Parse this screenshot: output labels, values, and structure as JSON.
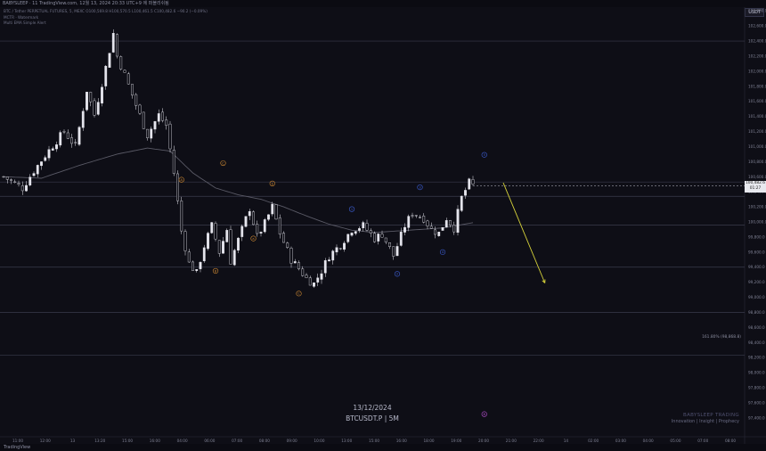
{
  "window": {
    "title": "BABYSLEEP · 11 TradingView.com, 12월 13, 2024 20:33 UTC+9 에 퍼블리쉬됨"
  },
  "legend": {
    "symbol_line": "BTC / Tether PERPETUAL FUTURES, 5, MEXC  O100,569.8 H100,570.5 L100,461.5 C100,482.6 −90.2 (−0.09%)",
    "line2": "MCTR · Watermark",
    "line3": "Multi EMA Simple Alert"
  },
  "currency_badge": "USDT",
  "current_price": {
    "label": "100,482.6",
    "countdown": "01:27"
  },
  "watermark": {
    "date": "13/12/2024",
    "ticker": "BTCUSDT.P | 5M"
  },
  "brand": {
    "name": "BABYSLEEP TRADING",
    "tagline": "Innovation | Insight | Prophecy"
  },
  "footer": {
    "label": "TradingView"
  },
  "colors": {
    "background": "#0e0e16",
    "candle": "#e6e6ee",
    "orange_wave": "#d08a33",
    "blue_wave": "#3d5fd6",
    "purple_wave": "#b64fd0",
    "projection": "#d6d23a",
    "ema": "#5a5a66"
  },
  "chart_data": {
    "type": "candlestick",
    "ylim": [
      97150,
      102850
    ],
    "y_ticks": [
      "102,800.0",
      "102,600.0",
      "102,400.0",
      "102,200.0",
      "102,000.0",
      "101,800.0",
      "101,600.0",
      "101,400.0",
      "101,200.0",
      "101,000.0",
      "100,800.0",
      "100,600.0",
      "100,400.0",
      "100,200.0",
      "100,000.0",
      "99,800.0",
      "99,600.0",
      "99,400.0",
      "99,200.0",
      "99,000.0",
      "98,800.0",
      "98,600.0",
      "98,400.0",
      "98,200.0",
      "98,000.0",
      "97,800.0",
      "97,600.0",
      "97,400.0"
    ],
    "x_ticks": [
      "11:00",
      "12:00",
      "13",
      "13:20",
      "15:00",
      "16:00",
      "04:00",
      "06:00",
      "07:00",
      "08:00",
      "09:00",
      "10:00",
      "13:00",
      "15:00",
      "16:00",
      "18:00",
      "19:00",
      "20:00",
      "21:00",
      "22:00",
      "14",
      "02:00",
      "03:00",
      "04:00",
      "05:00",
      "07:00",
      "08:00"
    ],
    "fib_annotation": "161.80% (98,868.8)",
    "horizontal_levels": [
      102400,
      100530,
      100340,
      99960,
      99400,
      98800,
      98230
    ],
    "close_path": [
      [
        0,
        100600
      ],
      [
        5,
        100450
      ],
      [
        8,
        100680
      ],
      [
        12,
        100950
      ],
      [
        16,
        101200
      ],
      [
        19,
        101000
      ],
      [
        22,
        101750
      ],
      [
        24,
        101420
      ],
      [
        27,
        102050
      ],
      [
        29,
        102500
      ],
      [
        30,
        102200
      ],
      [
        32,
        101950
      ],
      [
        35,
        101550
      ],
      [
        38,
        101150
      ],
      [
        41,
        101420
      ],
      [
        43,
        101280
      ],
      [
        45,
        100650
      ],
      [
        47,
        99880
      ],
      [
        49,
        99450
      ],
      [
        51,
        99320
      ],
      [
        53,
        99680
      ],
      [
        55,
        99950
      ],
      [
        57,
        99600
      ],
      [
        59,
        99900
      ],
      [
        60,
        99480
      ],
      [
        63,
        99900
      ],
      [
        65,
        100180
      ],
      [
        67,
        99800
      ],
      [
        69,
        99980
      ],
      [
        71,
        100200
      ],
      [
        73,
        99850
      ],
      [
        76,
        99500
      ],
      [
        78,
        99380
      ],
      [
        80,
        99250
      ],
      [
        82,
        99180
      ],
      [
        84,
        99350
      ],
      [
        86,
        99550
      ],
      [
        89,
        99700
      ],
      [
        92,
        99900
      ],
      [
        95,
        99950
      ],
      [
        98,
        99780
      ],
      [
        100,
        99840
      ],
      [
        103,
        99550
      ],
      [
        106,
        99950
      ],
      [
        108,
        100120
      ],
      [
        111,
        100050
      ],
      [
        113,
        99900
      ],
      [
        115,
        99850
      ],
      [
        117,
        100050
      ],
      [
        119,
        99920
      ],
      [
        121,
        100320
      ],
      [
        123,
        100520
      ],
      [
        124,
        100480
      ]
    ],
    "ema_path": [
      [
        0,
        100600
      ],
      [
        10,
        100580
      ],
      [
        20,
        100750
      ],
      [
        30,
        100900
      ],
      [
        38,
        100980
      ],
      [
        44,
        100940
      ],
      [
        50,
        100650
      ],
      [
        56,
        100450
      ],
      [
        62,
        100360
      ],
      [
        68,
        100300
      ],
      [
        74,
        100200
      ],
      [
        80,
        100080
      ],
      [
        86,
        99970
      ],
      [
        92,
        99890
      ],
      [
        98,
        99860
      ],
      [
        104,
        99880
      ],
      [
        110,
        99900
      ],
      [
        116,
        99920
      ],
      [
        124,
        99990
      ]
    ],
    "projection": [
      [
        132,
        100520
      ],
      [
        143,
        99190
      ]
    ],
    "wave_labels": [
      {
        "text": "A",
        "color": "orange",
        "x": 47,
        "y": 100560
      },
      {
        "text": "B",
        "color": "orange",
        "x": 56,
        "y": 99350
      },
      {
        "text": "C",
        "color": "orange",
        "x": 58,
        "y": 100780
      },
      {
        "text": "a",
        "color": "orange",
        "x": 66,
        "y": 99780
      },
      {
        "text": "b",
        "color": "orange",
        "x": 71,
        "y": 100510
      },
      {
        "text": "C",
        "color": "orange",
        "x": 78,
        "y": 99050
      },
      {
        "text": "1",
        "color": "blue",
        "x": 92,
        "y": 100170
      },
      {
        "text": "2",
        "color": "blue",
        "x": 104,
        "y": 99310
      },
      {
        "text": "3",
        "color": "blue",
        "x": 110,
        "y": 100460
      },
      {
        "text": "4",
        "color": "blue",
        "x": 116,
        "y": 99600
      },
      {
        "text": "5",
        "color": "blue",
        "x": 127,
        "y": 100890
      },
      {
        "text": "B",
        "color": "purple",
        "x": 127,
        "y": 97450
      }
    ]
  }
}
